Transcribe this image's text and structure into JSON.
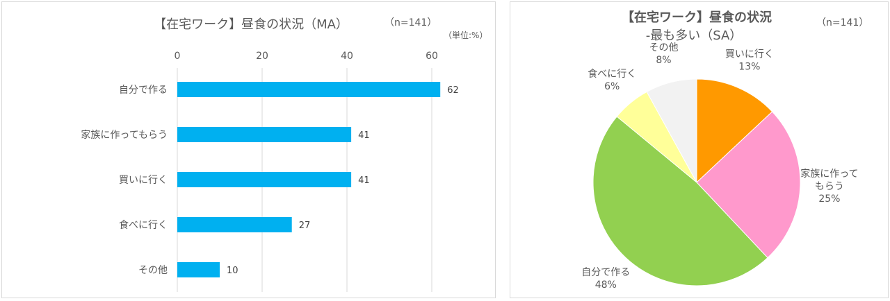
{
  "chart_data": [
    {
      "type": "bar",
      "orientation": "horizontal",
      "title": "【在宅ワーク】昼食の状況（MA）",
      "sample_note": "（n=141）",
      "unit_note": "（単位:%）",
      "categories": [
        "自分で作る",
        "家族に作ってもらう",
        "買いに行く",
        "食べに行く",
        "その他"
      ],
      "values": [
        62,
        41,
        41,
        27,
        10
      ],
      "xlim": [
        0,
        70
      ],
      "xticks": [
        0,
        20,
        40,
        60
      ],
      "xaxis_position": "top",
      "grid": true,
      "bar_color": "#00b0f0"
    },
    {
      "type": "pie",
      "title_line1": "【在宅ワーク】昼食の状況",
      "title_line2": "-最も多い（SA）",
      "sample_note": "（n=141）",
      "slices": [
        {
          "label": "買いに行く",
          "value": 13,
          "value_label": "13%",
          "color": "#ff9900"
        },
        {
          "label": "家族に作ってもらう",
          "label_lines": [
            "家族に作って",
            "もらう"
          ],
          "value": 25,
          "value_label": "25%",
          "color": "#ff99cc"
        },
        {
          "label": "自分で作る",
          "value": 48,
          "value_label": "48%",
          "color": "#92d050"
        },
        {
          "label": "食べに行く",
          "value": 6,
          "value_label": "6%",
          "color": "#ffff99"
        },
        {
          "label": "その他",
          "value": 8,
          "value_label": "8%",
          "color": "#f2f2f2"
        }
      ]
    }
  ]
}
